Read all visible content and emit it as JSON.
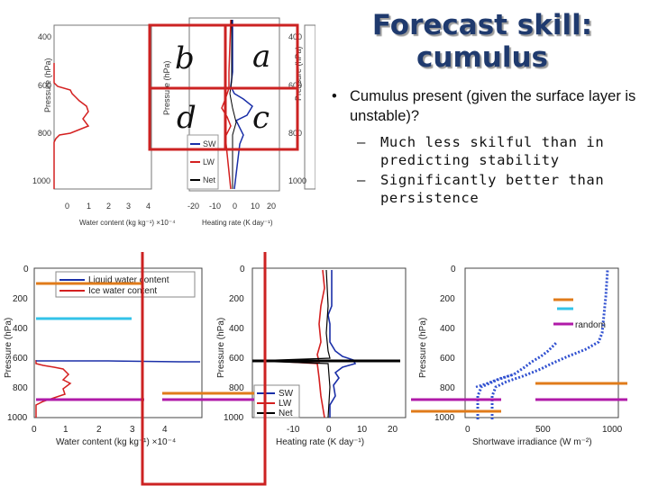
{
  "title": [
    "Forecast skill:",
    "cumulus"
  ],
  "bullet": "Cumulus present (given the surface layer is unstable)?",
  "subbullets": [
    "Much less skilful than in predicting stability",
    "Significantly better than persistence"
  ],
  "panel_letters": [
    "b",
    "a",
    "d",
    "c"
  ],
  "colors": {
    "highlight_red": "#cc2222",
    "orange": "#e07b1a",
    "cyan": "#33c3e8",
    "magenta": "#b01aa8",
    "liquid": "#1a2fa8",
    "ice": "#d42020",
    "net": "#000000"
  },
  "top_panels": {
    "left_ylabel": "Pressure (hPa)",
    "left_yticks": [
      "400",
      "600",
      "800",
      "1000"
    ],
    "left_xlabel": "Water content (kg kg⁻¹) ×10⁻⁴",
    "left_xticks": [
      "0",
      "1",
      "2",
      "3",
      "4"
    ],
    "mid_ylabel": "Pressure (hPa)",
    "mid_xlabel": "Heating rate (K day⁻¹)",
    "mid_xticks": [
      "-20",
      "-10",
      "0",
      "10",
      "20"
    ],
    "legend": [
      "SW",
      "LW",
      "Net"
    ],
    "right_ylabel": "Pressure (hPa)",
    "right_yticks": [
      "400",
      "600",
      "800",
      "1000"
    ]
  },
  "bottom_panels": {
    "ylabel": "Pressure (hPa)",
    "yticks": [
      "0",
      "200",
      "400",
      "600",
      "800",
      "1000"
    ],
    "water": {
      "legend": [
        "Liquid water content",
        "Ice water content"
      ],
      "xlabel": "Water content (kg kg⁻¹) ×10⁻⁴",
      "xticks": [
        "0",
        "1",
        "2",
        "3",
        "4"
      ]
    },
    "heating": {
      "legend": [
        "SW",
        "LW",
        "Net"
      ],
      "xlabel": "Heating rate (K day⁻¹)",
      "xticks": [
        "-10",
        "0",
        "10",
        "20"
      ]
    },
    "sw": {
      "xlabel": "Shortwave irradiance (W m⁻²)",
      "xticks": [
        "0",
        "500",
        "1000"
      ],
      "legend": "random"
    }
  }
}
